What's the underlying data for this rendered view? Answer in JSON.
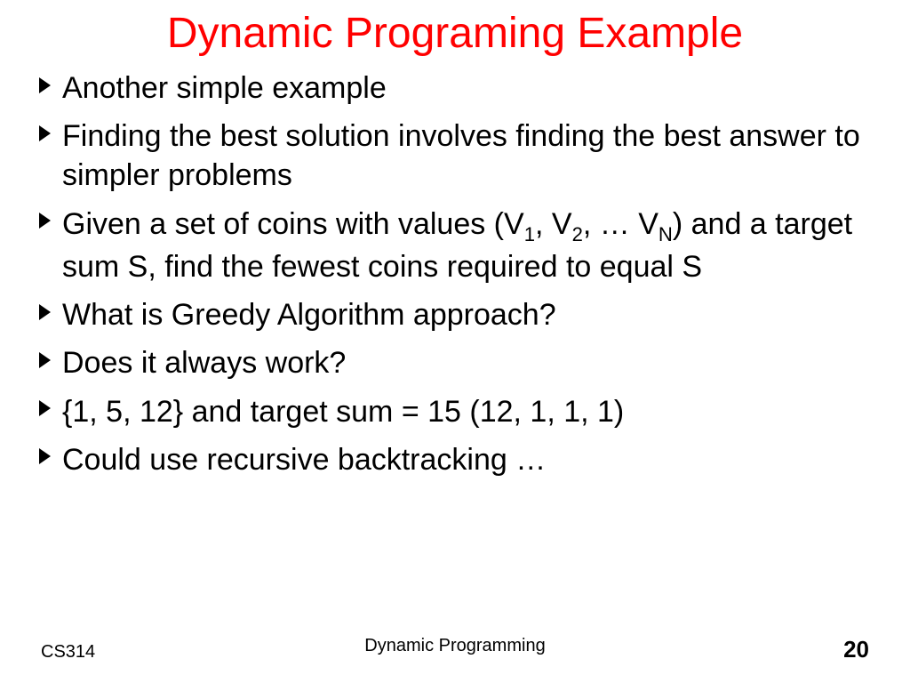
{
  "title": {
    "text": "Dynamic Programing Example",
    "color": "#ff0000",
    "fontsize": 48
  },
  "body": {
    "fontsize": 34,
    "color": "#000000"
  },
  "bullets": [
    {
      "html": "Another simple example"
    },
    {
      "html": "Finding the best solution involves finding the best answer to simpler problems"
    },
    {
      "html": "Given a set of coins with values (V<sub>1</sub>, V<sub>2</sub>, … V<sub>N</sub>) and a target sum S, find the fewest coins required to equal S"
    },
    {
      "html": "What is Greedy Algorithm approach?"
    },
    {
      "html": "Does it always work?"
    },
    {
      "html": "{1, 5, 12} and target sum = 15 (12, 1, 1, 1)"
    },
    {
      "html": "Could use recursive backtracking …"
    }
  ],
  "footer": {
    "left": "CS314",
    "center": "Dynamic Programming",
    "page": "20",
    "fontsize_small": 20,
    "fontsize_page": 26
  },
  "background_color": "#ffffff"
}
